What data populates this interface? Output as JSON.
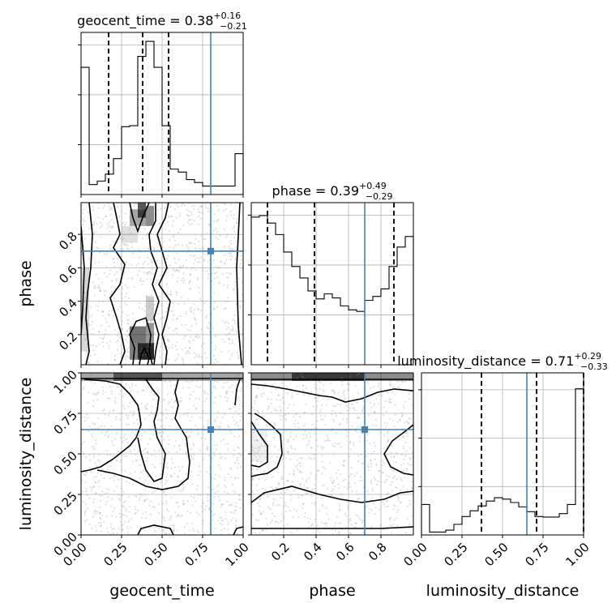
{
  "parameters": [
    "geocent_time",
    "phase",
    "luminosity_distance"
  ],
  "truth_color": "#4682b4",
  "chart_data": [
    {
      "type": "histogram",
      "panel": "diag-geocent_time",
      "title_main": "geocent_time = 0.38",
      "title_sup": "+0.16",
      "title_sub": "−0.21",
      "xlim": [
        0,
        1
      ],
      "bins": [
        0,
        0.05,
        0.1,
        0.15,
        0.2,
        0.25,
        0.3,
        0.35,
        0.4,
        0.45,
        0.5,
        0.55,
        0.6,
        0.65,
        0.7,
        0.75,
        0.8,
        0.85,
        0.9,
        0.95,
        1.0
      ],
      "counts": [
        2.55,
        0.2,
        0.27,
        0.41,
        0.72,
        1.36,
        1.38,
        2.77,
        3.07,
        2.55,
        1.38,
        0.51,
        0.45,
        0.3,
        0.24,
        0.17,
        0.17,
        0.17,
        0.17,
        0.82
      ],
      "ylim": [
        0,
        3.25
      ],
      "quantiles": [
        0.17,
        0.38,
        0.54
      ],
      "truth": 0.8
    },
    {
      "type": "histogram",
      "panel": "diag-phase",
      "title_main": "phase = 0.39",
      "title_sup": "+0.49",
      "title_sub": "−0.29",
      "xlim": [
        0.0,
        1.0
      ],
      "bins": [
        0,
        0.05,
        0.1,
        0.15,
        0.2,
        0.25,
        0.3,
        0.35,
        0.4,
        0.45,
        0.5,
        0.55,
        0.6,
        0.65,
        0.7,
        0.75,
        0.8,
        0.85,
        0.9,
        0.95,
        1.0
      ],
      "counts": [
        2.96,
        2.99,
        2.84,
        2.61,
        2.26,
        1.97,
        1.74,
        1.48,
        1.32,
        1.42,
        1.34,
        1.18,
        1.1,
        1.07,
        1.29,
        1.37,
        1.52,
        1.97,
        2.36,
        2.57
      ],
      "ylim": [
        0,
        3.25
      ],
      "quantiles": [
        0.1,
        0.39,
        0.88
      ],
      "truth": 0.7
    },
    {
      "type": "histogram",
      "panel": "diag-luminosity_distance",
      "title_main": "luminosity_distance = 0.71",
      "title_sup": "+0.29",
      "title_sub": "−0.33",
      "xlim": [
        0,
        1
      ],
      "bins": [
        0,
        0.05,
        0.1,
        0.15,
        0.2,
        0.25,
        0.3,
        0.35,
        0.4,
        0.45,
        0.5,
        0.55,
        0.6,
        0.65,
        0.7,
        0.75,
        0.8,
        0.85,
        0.9,
        0.95,
        1.0
      ],
      "counts": [
        0.63,
        0.06,
        0.06,
        0.1,
        0.22,
        0.38,
        0.5,
        0.6,
        0.7,
        0.77,
        0.74,
        0.67,
        0.58,
        0.48,
        0.38,
        0.37,
        0.37,
        0.44,
        0.63,
        3.02
      ],
      "ylim": [
        0,
        3.35
      ],
      "quantiles": [
        0.37,
        0.71,
        1.0
      ],
      "truth": 0.65
    },
    {
      "type": "contour",
      "panel": "pair-geocent_time-phase",
      "x": "geocent_time",
      "y": "phase",
      "xlim": [
        0,
        1
      ],
      "ylim": [
        0.02,
        0.99
      ],
      "truth": [
        0.8,
        0.7
      ]
    },
    {
      "type": "contour",
      "panel": "pair-geocent_time-luminosity_distance",
      "x": "geocent_time",
      "y": "luminosity_distance",
      "xlim": [
        0,
        1
      ],
      "ylim": [
        0,
        1
      ],
      "truth": [
        0.8,
        0.65
      ]
    },
    {
      "type": "contour",
      "panel": "pair-phase-luminosity_distance",
      "x": "phase",
      "y": "luminosity_distance",
      "xlim": [
        0,
        1
      ],
      "ylim": [
        0,
        1
      ],
      "truth": [
        0.7,
        0.65
      ]
    }
  ],
  "axes": {
    "x_geocent_time": {
      "label": "geocent_time",
      "ticks": [
        0,
        0.25,
        0.5,
        0.75,
        1.0
      ],
      "tick_labels": [
        "0.00",
        "0.25",
        "0.50",
        "0.75",
        "1.00"
      ]
    },
    "x_phase": {
      "label": "phase",
      "ticks": [
        0.2,
        0.4,
        0.6,
        0.8
      ],
      "tick_labels": [
        "0.2",
        "0.4",
        "0.6",
        "0.8"
      ]
    },
    "x_luminosity_distance": {
      "label": "luminosity_distance",
      "ticks": [
        0,
        0.25,
        0.5,
        0.75,
        1.0
      ],
      "tick_labels": [
        "0.00",
        "0.25",
        "0.50",
        "0.75",
        "1.00"
      ]
    },
    "y_phase": {
      "label": "phase",
      "ticks": [
        0.2,
        0.4,
        0.6,
        0.8
      ],
      "tick_labels": [
        "0.2",
        "0.4",
        "0.6",
        "0.8"
      ]
    },
    "y_luminosity_distance": {
      "label": "luminosity_distance",
      "ticks": [
        0,
        0.25,
        0.5,
        0.75,
        1.0
      ],
      "tick_labels": [
        "0.00",
        "0.25",
        "0.50",
        "0.75",
        "1.00"
      ]
    }
  }
}
